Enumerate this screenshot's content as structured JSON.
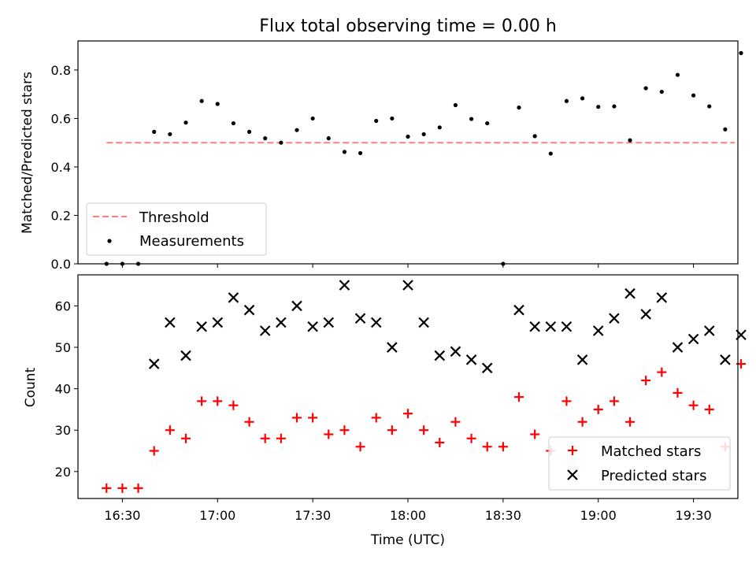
{
  "chart_data": [
    {
      "type": "scatter",
      "title": "Flux total observing time = 0.00 h",
      "xlabel": "",
      "ylabel": "Matched/Predicted stars",
      "xlim": [
        "16:16",
        "19:44"
      ],
      "ylim": [
        0,
        0.92
      ],
      "yticks": [
        0.0,
        0.2,
        0.4,
        0.6,
        0.8
      ],
      "ytick_labels": [
        "0.0",
        "0.2",
        "0.4",
        "0.6",
        "0.8"
      ],
      "legend": {
        "placement": "lower-left"
      },
      "threshold": {
        "name": "Threshold",
        "value": 0.5,
        "x_start": "16:25",
        "x_end": "19:43",
        "color": "#ff7f7f",
        "style": "dashed"
      },
      "series": [
        {
          "name": "Measurements",
          "color": "#000000",
          "marker": "dot",
          "x": [
            "16:25",
            "16:30",
            "16:35",
            "16:40",
            "16:45",
            "16:50",
            "16:55",
            "17:00",
            "17:05",
            "17:10",
            "17:15",
            "17:20",
            "17:25",
            "17:30",
            "17:35",
            "17:40",
            "17:45",
            "17:50",
            "17:55",
            "18:00",
            "18:05",
            "18:10",
            "18:15",
            "18:20",
            "18:25",
            "18:30",
            "18:35",
            "18:40",
            "18:45",
            "18:50",
            "18:55",
            "19:00",
            "19:05",
            "19:10",
            "19:15",
            "19:20",
            "19:25",
            "19:30",
            "19:35",
            "19:40",
            "19:45"
          ],
          "y": [
            0.0,
            0.0,
            0.0,
            0.545,
            0.535,
            0.583,
            0.672,
            0.66,
            0.58,
            0.545,
            0.518,
            0.5,
            0.552,
            0.6,
            0.518,
            0.462,
            0.457,
            0.59,
            0.6,
            0.525,
            0.535,
            0.563,
            0.655,
            0.598,
            0.58,
            0.0,
            0.645,
            0.527,
            0.455,
            0.672,
            0.683,
            0.648,
            0.65,
            0.51,
            0.725,
            0.71,
            0.78,
            0.695,
            0.65,
            0.555,
            0.87
          ]
        }
      ]
    },
    {
      "type": "scatter",
      "title": "",
      "xlabel": "Time (UTC)",
      "ylabel": "Count",
      "xlim": [
        "16:16",
        "19:44"
      ],
      "ylim": [
        13.5,
        67.5
      ],
      "yticks": [
        20,
        30,
        40,
        50,
        60
      ],
      "xticks": [
        "16:30",
        "17:00",
        "17:30",
        "18:00",
        "18:30",
        "19:00",
        "19:30"
      ],
      "legend": {
        "placement": "lower-right"
      },
      "series": [
        {
          "name": "Matched stars",
          "color": "#ff0000",
          "marker": "plus",
          "x": [
            "16:25",
            "16:30",
            "16:35",
            "16:40",
            "16:45",
            "16:50",
            "16:55",
            "17:00",
            "17:05",
            "17:10",
            "17:15",
            "17:20",
            "17:25",
            "17:30",
            "17:35",
            "17:40",
            "17:45",
            "17:50",
            "17:55",
            "18:00",
            "18:05",
            "18:10",
            "18:15",
            "18:20",
            "18:25",
            "18:30",
            "18:35",
            "18:40",
            "18:45",
            "18:50",
            "18:55",
            "19:00",
            "19:05",
            "19:10",
            "19:15",
            "19:20",
            "19:25",
            "19:30",
            "19:35",
            "19:40",
            "19:45"
          ],
          "y": [
            16,
            16,
            16,
            25,
            30,
            28,
            37,
            37,
            36,
            32,
            28,
            28,
            33,
            33,
            29,
            30,
            26,
            33,
            30,
            34,
            30,
            27,
            32,
            28,
            26,
            26,
            38,
            29,
            25,
            37,
            32,
            35,
            37,
            32,
            42,
            44,
            39,
            36,
            35,
            26,
            46
          ]
        },
        {
          "name": "Predicted stars",
          "color": "#000000",
          "marker": "x",
          "x": [
            "16:40",
            "16:45",
            "16:50",
            "16:55",
            "17:00",
            "17:05",
            "17:10",
            "17:15",
            "17:20",
            "17:25",
            "17:30",
            "17:35",
            "17:40",
            "17:45",
            "17:50",
            "17:55",
            "18:00",
            "18:05",
            "18:10",
            "18:15",
            "18:20",
            "18:25",
            "18:35",
            "18:40",
            "18:45",
            "18:50",
            "18:55",
            "19:00",
            "19:05",
            "19:10",
            "19:15",
            "19:20",
            "19:25",
            "19:30",
            "19:35",
            "19:40",
            "19:45"
          ],
          "y": [
            46,
            56,
            48,
            55,
            56,
            62,
            59,
            54,
            56,
            60,
            55,
            56,
            65,
            57,
            56,
            50,
            65,
            56,
            48,
            49,
            47,
            45,
            59,
            55,
            55,
            55,
            47,
            54,
            57,
            63,
            58,
            62,
            50,
            52,
            54,
            47,
            53
          ]
        }
      ]
    }
  ]
}
